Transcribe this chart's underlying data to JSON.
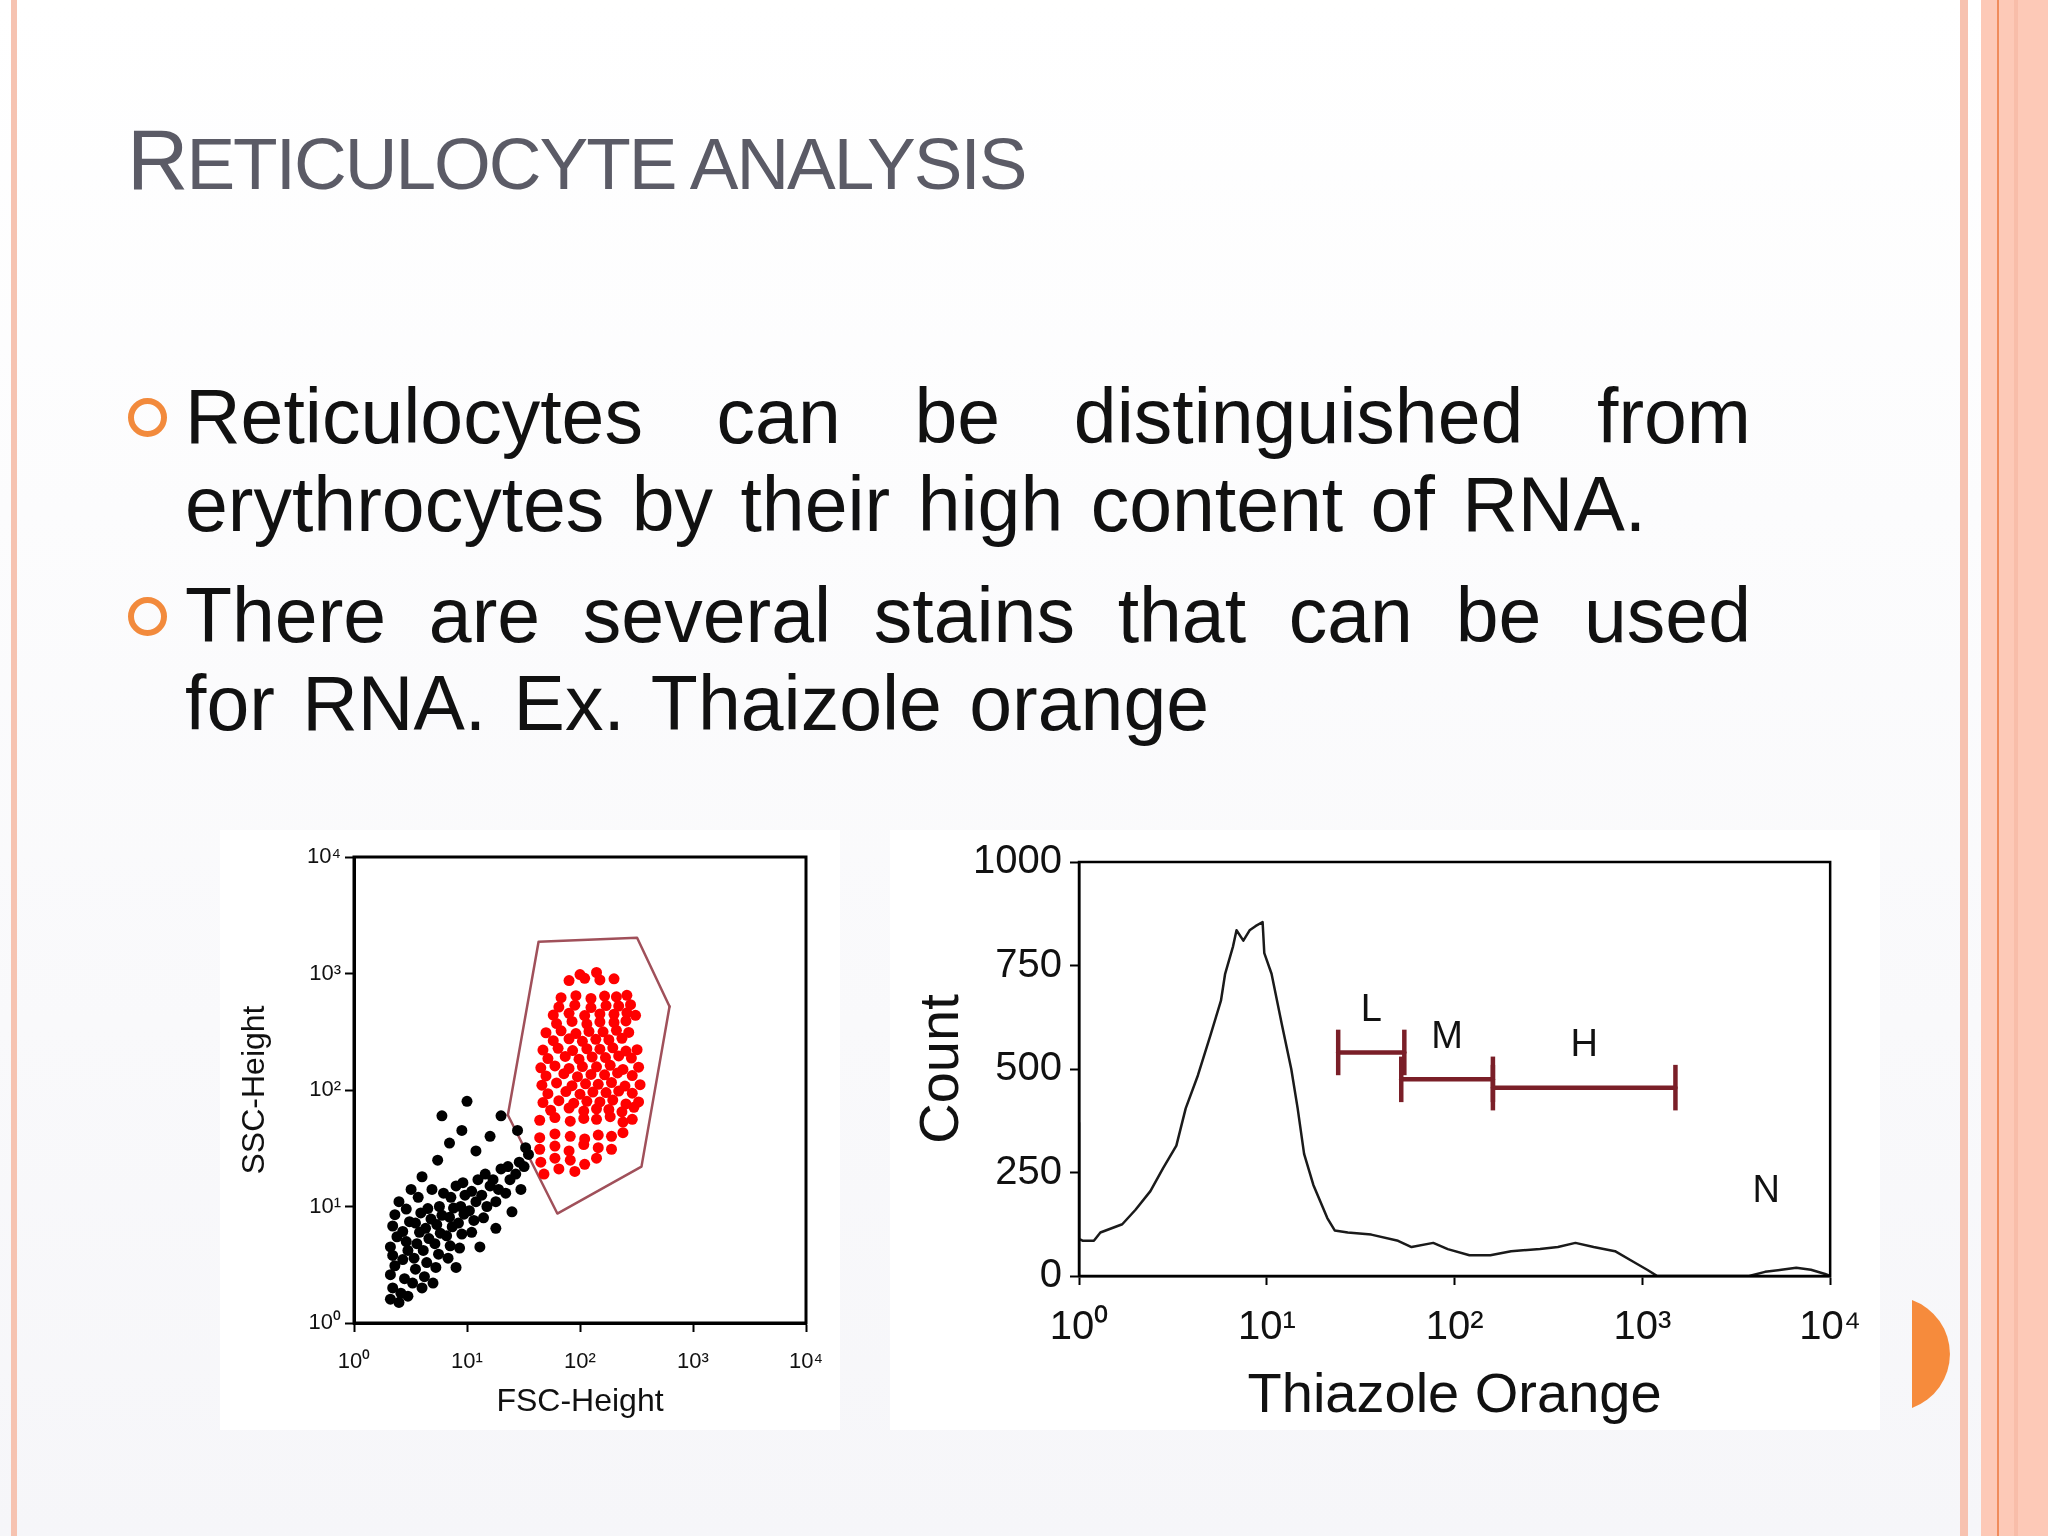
{
  "chart_data": [
    {
      "type": "other",
      "title": "RETICULOCYTE ANALYSIS",
      "annotations": [
        "Reticulocytes can be distinguished from erythrocytes by their high content of RNA.",
        "There are several stains that can be used for RNA. Ex. Thaizole orange"
      ]
    },
    {
      "type": "scatter",
      "xlabel": "FSC-Height",
      "ylabel": "SSC-Height",
      "log": "xy",
      "xlim": [
        1,
        10000
      ],
      "ylim": [
        1,
        10000
      ],
      "xticks": [
        {
          "value": 1,
          "label": "10⁰"
        },
        {
          "value": 10,
          "label": "10¹"
        },
        {
          "value": 100,
          "label": "10²"
        },
        {
          "value": 1000,
          "label": "10³"
        },
        {
          "value": 10000,
          "label": "10⁴"
        }
      ],
      "yticks": [
        {
          "value": 1,
          "label": "10⁰"
        },
        {
          "value": 10,
          "label": "10¹"
        },
        {
          "value": 100,
          "label": "10²"
        },
        {
          "value": 1000,
          "label": "10³"
        },
        {
          "value": 10000,
          "label": "10⁴"
        }
      ],
      "marker": "circle",
      "series": [
        {
          "color": "#000000",
          "x": [
            2.1,
            2.2,
            2.1,
            2.3,
            2.2,
            2.1,
            2.4,
            2.2,
            2.3,
            2.5,
            2.6,
            2.8,
            2.7,
            3.0,
            2.9,
            2.7,
            3.1,
            2.9,
            3.3,
            3.5,
            3.4,
            3.6,
            3.8,
            3.5,
            3.9,
            3.7,
            4.2,
            4.4,
            4.1,
            4.6,
            4.3,
            4.8,
            4.5,
            4.9,
            5.3,
            5.6,
            5.2,
            5.8,
            5.4,
            6.0,
            5.7,
            6.2,
            6.8,
            7.1,
            6.6,
            7.4,
            7.0,
            7.6,
            7.2,
            8.0,
            8.6,
            9.0,
            8.4,
            9.4,
            8.8,
            9.6,
            9.2,
            11,
            11.5,
            10.5,
            12,
            11,
            12.5,
            14,
            15,
            13.5,
            16,
            14.5,
            18,
            19,
            17,
            20,
            22,
            24,
            23,
            27,
            29,
            32,
            35,
            33,
            2.5,
            3.0,
            4.0,
            3.2,
            4.0,
            5.5,
            7.0,
            9.0,
            12,
            16,
            6.0,
            10,
            20,
            28,
            25,
            30,
            18,
            13,
            8.0,
            5.0
          ],
          "values": [
            1.6,
            2.0,
            2.6,
            3.1,
            3.8,
            4.5,
            5.5,
            6.8,
            8.5,
            11,
            1.8,
            2.4,
            3.5,
            4.2,
            5.0,
            6.1,
            7.4,
            9.5,
            2.2,
            2.9,
            3.6,
            4.8,
            6.0,
            7.2,
            8.8,
            12,
            2.5,
            3.3,
            4.2,
            5.3,
            6.5,
            7.8,
            9.6,
            14,
            3.0,
            3.9,
            4.8,
            5.9,
            7.0,
            8.4,
            10,
            13,
            3.6,
            4.6,
            5.6,
            6.7,
            8.1,
            9.7,
            12,
            15,
            4.4,
            5.8,
            7.2,
            8.6,
            10,
            12.5,
            16,
            6.0,
            7.6,
            9.2,
            11,
            13.5,
            17,
            8.0,
            10,
            12.5,
            15,
            19,
            11,
            14,
            17,
            21,
            13,
            17,
            22,
            19,
            24,
            22,
            28,
            32,
            1.5,
            1.7,
            2.0,
            14,
            18,
            25,
            35,
            45,
            30,
            40,
            60,
            80,
            60,
            45,
            9.0,
            14,
            6.5,
            4.5,
            3.0,
            2.2
          ]
        },
        {
          "color": "#ff0000",
          "x": [
            48,
            65,
            90,
            45,
            60,
            82,
            110,
            140,
            44,
            60,
            80,
            108,
            145,
            190,
            44,
            60,
            82,
            110,
            145,
            190,
            240,
            44,
            60,
            82,
            108,
            140,
            185,
            240,
            290,
            55,
            80,
            108,
            140,
            180,
            235,
            300,
            47,
            65,
            88,
            115,
            150,
            195,
            255,
            330,
            52,
            75,
            100,
            130,
            170,
            220,
            290,
            46,
            62,
            85,
            112,
            145,
            190,
            250,
            340,
            50,
            72,
            95,
            125,
            165,
            215,
            290,
            45,
            60,
            80,
            105,
            140,
            185,
            240,
            330,
            52,
            74,
            98,
            128,
            168,
            220,
            285,
            47,
            64,
            86,
            115,
            150,
            195,
            255,
            320,
            58,
            80,
            105,
            138,
            180,
            235,
            50,
            68,
            92,
            120,
            160,
            210,
            270,
            62,
            85,
            115,
            150,
            200,
            255,
            58,
            80,
            110,
            150,
            200,
            260,
            310,
            65,
            90,
            125,
            170,
            220,
            280,
            68,
            92,
            125,
            165,
            210,
            260,
            80,
            110,
            150,
            200,
            100,
            140
          ],
          "values": [
            19,
            21,
            20,
            24,
            26,
            25,
            23,
            26,
            31,
            33,
            30,
            34,
            32,
            31,
            39,
            42,
            40,
            38,
            41,
            40,
            43,
            55,
            58,
            54,
            57,
            56,
            59,
            53,
            56,
            67,
            70,
            66,
            69,
            68,
            65,
            71,
            78,
            81,
            77,
            80,
            79,
            82,
            76,
            79,
            93,
            97,
            92,
            96,
            95,
            98,
            94,
            110,
            115,
            109,
            113,
            112,
            116,
            108,
            111,
            132,
            138,
            130,
            136,
            135,
            140,
            133,
            155,
            161,
            153,
            159,
            158,
            163,
            150,
            157,
            186,
            194,
            184,
            192,
            190,
            196,
            188,
            220,
            228,
            218,
            226,
            224,
            230,
            216,
            222,
            265,
            275,
            262,
            272,
            270,
            278,
            310,
            322,
            305,
            318,
            316,
            325,
            312,
            372,
            388,
            368,
            384,
            380,
            392,
            440,
            455,
            435,
            450,
            447,
            460,
            438,
            515,
            535,
            510,
            530,
            525,
            540,
            620,
            645,
            610,
            640,
            631,
            650,
            870,
            910,
            880,
            900,
            980,
            1020
          ]
        },
        {
          "type": "line",
          "color": "#a0505a",
          "marker": "none",
          "x": [
            23,
            43,
            320,
            620
          ],
          "values": [
            61,
            1870,
            2030,
            520
          ]
        },
        {
          "type": "line",
          "color": "#a0505a",
          "marker": "none",
          "x": [
            23,
            63,
            350,
            620
          ],
          "values": [
            61,
            8.7,
            22,
            520
          ]
        }
      ]
    },
    {
      "type": "line",
      "xlabel": "Thiazole Orange",
      "ylabel": "Count",
      "log": "x",
      "xlim": [
        1,
        10000
      ],
      "ylim": [
        0,
        1000
      ],
      "xticks": [
        {
          "value": 1,
          "label": "10⁰"
        },
        {
          "value": 10,
          "label": "10¹"
        },
        {
          "value": 100,
          "label": "10²"
        },
        {
          "value": 1000,
          "label": "10³"
        },
        {
          "value": 10000,
          "label": "10⁴"
        }
      ],
      "yticks": [
        0,
        250,
        500,
        750,
        1000
      ],
      "marker": "none",
      "annotations": [
        "N"
      ],
      "series": [
        {
          "color": "#1a1a1a",
          "x": [
            1,
            1,
            1.05,
            1.2,
            1.3,
            1.7,
            2,
            2.4,
            2.8,
            3.3,
            3.7,
            4.3,
            5,
            5.7,
            6,
            6.6,
            6.9,
            7.5,
            8.1,
            8.7,
            9.5,
            9.7,
            10.6,
            12,
            13.5,
            14.6,
            15.8,
            17.7,
            21,
            23,
            27,
            36,
            50,
            59,
            77,
            92,
            120,
            155,
            200,
            285,
            355,
            440,
            550,
            715,
            890,
            1060,
            1200,
            3700,
            4500,
            5500,
            6600,
            7900,
            9400,
            10000
          ],
          "values": [
            370,
            90,
            85,
            85,
            105,
            125,
            160,
            205,
            260,
            315,
            405,
            485,
            580,
            665,
            730,
            795,
            835,
            810,
            835,
            845,
            855,
            780,
            730,
            610,
            500,
            405,
            295,
            220,
            140,
            110,
            105,
            100,
            85,
            70,
            80,
            65,
            50,
            50,
            60,
            65,
            70,
            80,
            70,
            60,
            35,
            15,
            0,
            0,
            10,
            15,
            20,
            15,
            5,
            0
          ]
        },
        {
          "name": "L",
          "color": "#7a1f28",
          "x": [
            24,
            54
          ],
          "values": [
            540,
            540
          ],
          "errors": [
            55,
            55
          ]
        },
        {
          "name": "M",
          "color": "#7a1f28",
          "x": [
            52,
            160
          ],
          "values": [
            475,
            475
          ],
          "errors": [
            55,
            55
          ]
        },
        {
          "name": "H",
          "color": "#7a1f28",
          "x": [
            160,
            1500
          ],
          "values": [
            455,
            455
          ],
          "errors": [
            55,
            55
          ]
        }
      ]
    }
  ]
}
